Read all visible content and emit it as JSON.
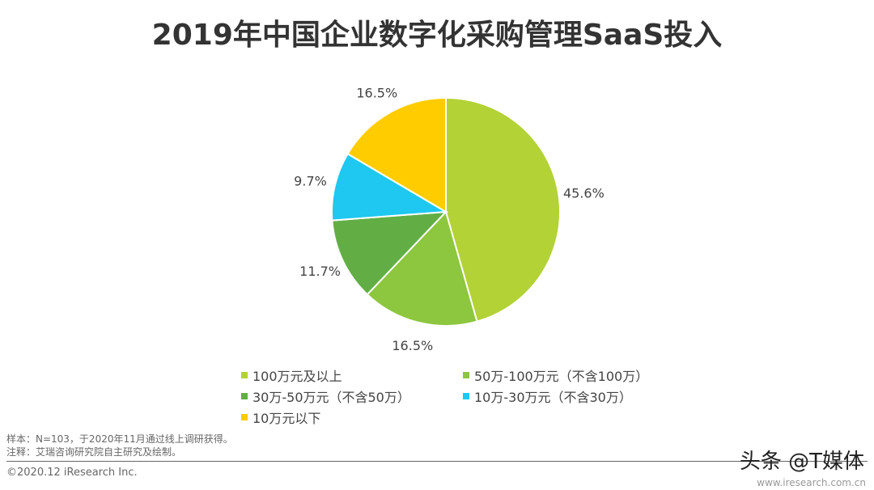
{
  "chart_data": {
    "type": "pie",
    "title": "2019年中国企业数字化采购管理SaaS投入",
    "start": "top",
    "direction": "clockwise",
    "slices": [
      {
        "name": "100万元及以上",
        "value": 45.6,
        "label": "45.6%",
        "color": "#b2d235"
      },
      {
        "name": "50万-100万元（不含100万）",
        "value": 16.5,
        "label": "16.5%",
        "color": "#8dc63f"
      },
      {
        "name": "30万-50万元（不含50万）",
        "value": 11.7,
        "label": "11.7%",
        "color": "#62ae45"
      },
      {
        "name": "10万-30万元（不含30万）",
        "value": 9.7,
        "label": "9.7%",
        "color": "#1ec8f0"
      },
      {
        "name": "10万元以下",
        "value": 16.5,
        "label": "16.5%",
        "color": "#ffcc00"
      }
    ],
    "legend_placement": "bottom"
  },
  "notes": {
    "sample": "样本：N=103，于2020年11月通过线上调研获得。",
    "source": "注释：艾瑞咨询研究院自主研究及绘制。",
    "copyright": "©2020.12 iResearch Inc.",
    "site": "www.iresearch.com.cn",
    "watermark": "头条 @T媒体"
  }
}
